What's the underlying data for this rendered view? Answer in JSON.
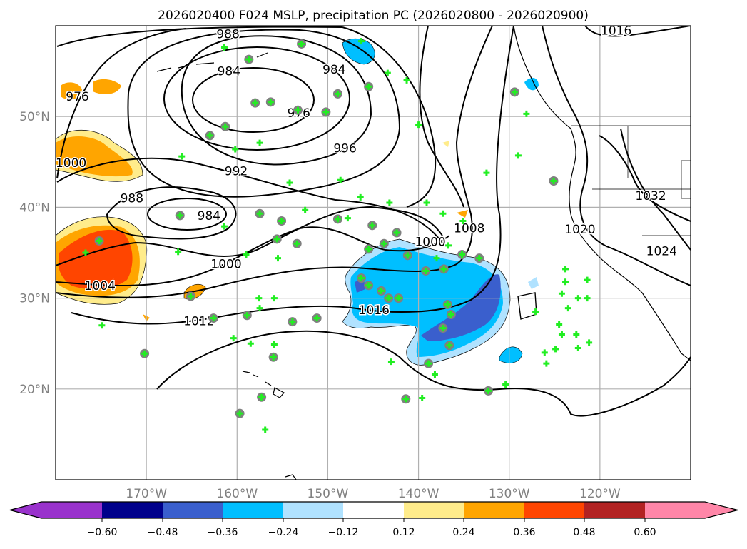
{
  "chart_data": {
    "type": "map-contour",
    "title": "2026020400 F024 MSLP, precipitation PC (2026020800 - 2026020900)",
    "lon_range": [
      -180,
      -110
    ],
    "lat_range": [
      10,
      60
    ],
    "grid": true,
    "lon_ticks": [
      -170,
      -160,
      -150,
      -140,
      -130,
      -120
    ],
    "lon_tick_labels": [
      "170°W",
      "160°W",
      "150°W",
      "140°W",
      "130°W",
      "120°W"
    ],
    "lat_ticks": [
      50,
      40,
      30,
      20
    ],
    "lat_tick_labels": [
      "50°N",
      "40°N",
      "30°N",
      "20°N"
    ],
    "contour_labels": [
      {
        "value": "988",
        "lon": -161.0,
        "lat": 59.1
      },
      {
        "value": "1016",
        "lon": -118.2,
        "lat": 59.5
      },
      {
        "value": "984",
        "lon": -160.9,
        "lat": 55.0
      },
      {
        "value": "984",
        "lon": -149.3,
        "lat": 55.2
      },
      {
        "value": "976",
        "lon": -177.6,
        "lat": 52.2
      },
      {
        "value": "976",
        "lon": -153.2,
        "lat": 50.4
      },
      {
        "value": "996",
        "lon": -148.1,
        "lat": 46.5
      },
      {
        "value": "992",
        "lon": -160.1,
        "lat": 44.0
      },
      {
        "value": "1000",
        "lon": -178.3,
        "lat": 44.9
      },
      {
        "value": "988",
        "lon": -171.6,
        "lat": 41.0
      },
      {
        "value": "984",
        "lon": -163.1,
        "lat": 39.1
      },
      {
        "value": "1000",
        "lon": -161.2,
        "lat": 33.8
      },
      {
        "value": "1004",
        "lon": -175.1,
        "lat": 31.4
      },
      {
        "value": "1012",
        "lon": -164.2,
        "lat": 27.5
      },
      {
        "value": "1016",
        "lon": -144.9,
        "lat": 28.7
      },
      {
        "value": "1000",
        "lon": -138.7,
        "lat": 36.2
      },
      {
        "value": "1008",
        "lon": -134.4,
        "lat": 37.7
      },
      {
        "value": "1020",
        "lon": -122.2,
        "lat": 37.6
      },
      {
        "value": "1024",
        "lon": -113.2,
        "lat": 35.2
      },
      {
        "value": "1032",
        "lon": -114.4,
        "lat": 41.3
      }
    ],
    "stations": [
      [
        -161.4,
        57.6,
        0
      ],
      [
        -158.7,
        56.3,
        1
      ],
      [
        -152.9,
        58.0,
        1
      ],
      [
        -146.3,
        58.3,
        0
      ],
      [
        -143.4,
        54.8,
        0
      ],
      [
        -145.5,
        53.3,
        1
      ],
      [
        -148.9,
        52.5,
        1
      ],
      [
        -150.2,
        50.5,
        1
      ],
      [
        -158.0,
        51.5,
        1
      ],
      [
        -156.3,
        51.6,
        1
      ],
      [
        -153.3,
        50.7,
        1
      ],
      [
        -161.3,
        48.9,
        1
      ],
      [
        -163.0,
        47.9,
        1
      ],
      [
        -160.2,
        46.4,
        0
      ],
      [
        -157.5,
        47.1,
        0
      ],
      [
        -166.1,
        45.6,
        0
      ],
      [
        -154.2,
        42.7,
        0
      ],
      [
        -148.6,
        43.0,
        0
      ],
      [
        -146.4,
        41.1,
        0
      ],
      [
        -143.2,
        40.5,
        0
      ],
      [
        -139.1,
        40.5,
        0
      ],
      [
        -140.0,
        49.1,
        0
      ],
      [
        -141.3,
        54.0,
        0
      ],
      [
        -166.3,
        39.1,
        1
      ],
      [
        -157.5,
        39.3,
        1
      ],
      [
        -155.1,
        38.5,
        1
      ],
      [
        -152.5,
        39.7,
        0
      ],
      [
        -161.4,
        37.9,
        0
      ],
      [
        -155.6,
        36.5,
        1
      ],
      [
        -153.4,
        36.0,
        1
      ],
      [
        -159.0,
        34.8,
        0
      ],
      [
        -155.5,
        34.4,
        0
      ],
      [
        -166.5,
        35.1,
        0
      ],
      [
        -175.2,
        36.3,
        1
      ],
      [
        -176.7,
        35.0,
        0
      ],
      [
        -165.1,
        30.2,
        1
      ],
      [
        -157.6,
        30.0,
        0
      ],
      [
        -155.9,
        30.0,
        0
      ],
      [
        -157.5,
        28.9,
        0
      ],
      [
        -158.9,
        28.1,
        1
      ],
      [
        -162.6,
        27.8,
        1
      ],
      [
        -153.9,
        27.4,
        1
      ],
      [
        -151.2,
        27.8,
        1
      ],
      [
        -160.4,
        25.6,
        0
      ],
      [
        -158.5,
        25.0,
        0
      ],
      [
        -155.9,
        24.9,
        0
      ],
      [
        -156.0,
        23.5,
        1
      ],
      [
        -174.9,
        27.0,
        0
      ],
      [
        -170.2,
        23.9,
        1
      ],
      [
        -157.3,
        19.1,
        1
      ],
      [
        -159.7,
        17.3,
        1
      ],
      [
        -156.9,
        15.5,
        0
      ],
      [
        -148.9,
        38.7,
        1
      ],
      [
        -147.8,
        38.8,
        0
      ],
      [
        -145.1,
        38.0,
        1
      ],
      [
        -145.5,
        35.4,
        1
      ],
      [
        -142.4,
        37.2,
        1
      ],
      [
        -143.8,
        36.0,
        1
      ],
      [
        -141.2,
        34.7,
        1
      ],
      [
        -139.2,
        33.0,
        1
      ],
      [
        -137.2,
        33.2,
        1
      ],
      [
        -138.0,
        34.4,
        0
      ],
      [
        -135.2,
        34.8,
        1
      ],
      [
        -133.3,
        34.4,
        1
      ],
      [
        -146.3,
        32.2,
        1
      ],
      [
        -145.5,
        31.4,
        1
      ],
      [
        -144.1,
        30.8,
        1
      ],
      [
        -143.3,
        30.0,
        1
      ],
      [
        -142.2,
        30.0,
        1
      ],
      [
        -136.8,
        29.3,
        1
      ],
      [
        -136.4,
        28.2,
        1
      ],
      [
        -137.3,
        26.7,
        1
      ],
      [
        -136.6,
        24.8,
        1
      ],
      [
        -138.9,
        22.8,
        1
      ],
      [
        -138.2,
        21.6,
        0
      ],
      [
        -143.0,
        23.0,
        0
      ],
      [
        -141.4,
        18.9,
        1
      ],
      [
        -139.6,
        19.0,
        0
      ],
      [
        -132.3,
        19.8,
        1
      ],
      [
        -130.4,
        20.5,
        0
      ],
      [
        -127.1,
        28.5,
        0
      ],
      [
        -129.4,
        52.7,
        1
      ],
      [
        -128.1,
        50.3,
        0
      ],
      [
        -129.0,
        45.7,
        0
      ],
      [
        -125.1,
        42.9,
        1
      ],
      [
        -132.5,
        43.8,
        0
      ],
      [
        -136.7,
        35.8,
        0
      ],
      [
        -135.1,
        38.5,
        0
      ],
      [
        -137.3,
        39.3,
        0
      ],
      [
        -123.8,
        33.2,
        0
      ],
      [
        -123.8,
        31.8,
        0
      ],
      [
        -124.2,
        30.5,
        0
      ],
      [
        -123.5,
        28.9,
        0
      ],
      [
        -124.5,
        27.1,
        0
      ],
      [
        -124.2,
        26.0,
        0
      ],
      [
        -124.9,
        24.4,
        0
      ],
      [
        -126.1,
        24.0,
        0
      ],
      [
        -125.9,
        22.8,
        0
      ],
      [
        -122.4,
        30.0,
        0
      ],
      [
        -121.4,
        30.0,
        0
      ],
      [
        -121.4,
        32.0,
        0
      ],
      [
        -122.6,
        26.0,
        0
      ],
      [
        -122.4,
        24.5,
        0
      ],
      [
        -121.2,
        25.1,
        0
      ]
    ],
    "colorbar": {
      "ticks": [
        "−0.60",
        "−0.48",
        "−0.36",
        "−0.24",
        "−0.12",
        "0.12",
        "0.24",
        "0.36",
        "0.48",
        "0.60"
      ],
      "colors": [
        "#9932cc",
        "#00008b",
        "#3a5fcd",
        "#00bfff",
        "#b0e2ff",
        "#ffffff",
        "#ffec8b",
        "#ffa500",
        "#ff4500",
        "#b22222",
        "#ff86a8"
      ]
    }
  }
}
